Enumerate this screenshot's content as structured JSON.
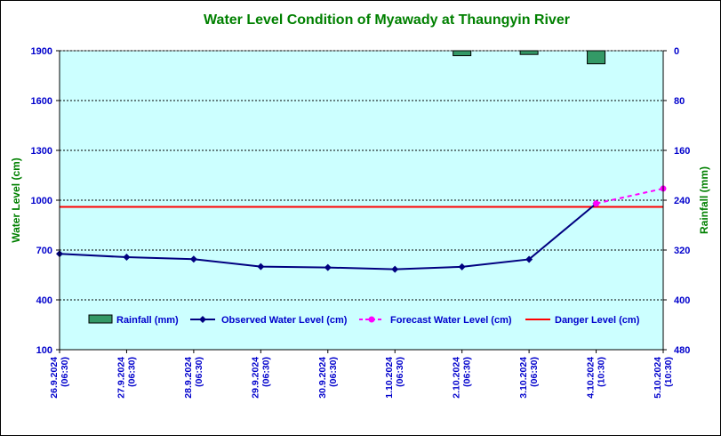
{
  "chart_data": {
    "type": "line",
    "title": "Water Level Condition of  Myawady at Thaungyin River",
    "ylabel": "Water Level (cm)",
    "y2label": "Rainfall (mm)",
    "ylim": [
      100,
      1900
    ],
    "yticks": [
      100,
      400,
      700,
      1000,
      1300,
      1600,
      1900
    ],
    "y2lim": [
      0,
      480
    ],
    "y2ticks": [
      0,
      80,
      160,
      240,
      320,
      400,
      480
    ],
    "y2_inverted": true,
    "grid": true,
    "legend_position": "bottom-inside",
    "categories": [
      {
        "date": "26.9.2024",
        "time": "(06:30)"
      },
      {
        "date": "27.9.2024",
        "time": "(06:30)"
      },
      {
        "date": "28.9.2024",
        "time": "(06:30)"
      },
      {
        "date": "29.9.2024",
        "time": "(06:30)"
      },
      {
        "date": "30.9.2024",
        "time": "(06:30)"
      },
      {
        "date": "1.10.2024",
        "time": "(06:30)"
      },
      {
        "date": "2.10.2024",
        "time": "(06:30)"
      },
      {
        "date": "3.10.2024",
        "time": "(06:30)"
      },
      {
        "date": "4.10.2024",
        "time": "(10:30)"
      },
      {
        "date": "5.10.2024",
        "time": "(10:30)"
      }
    ],
    "series": [
      {
        "name": "Rainfall (mm)",
        "kind": "bar",
        "axis": "right",
        "color": "#339966",
        "values": [
          null,
          null,
          null,
          null,
          null,
          null,
          8,
          6,
          21,
          null
        ]
      },
      {
        "name": "Observed Water Level (cm)",
        "kind": "line",
        "axis": "left",
        "color": "#000080",
        "values": [
          677,
          657,
          645,
          600,
          595,
          584,
          599,
          644,
          980,
          null
        ]
      },
      {
        "name": "Forecast Water Level (cm)",
        "kind": "dashed-line",
        "axis": "left",
        "color": "#ff00ff",
        "values": [
          null,
          null,
          null,
          null,
          null,
          null,
          null,
          null,
          980,
          1070
        ]
      },
      {
        "name": "Danger Level (cm)",
        "kind": "hline",
        "axis": "left",
        "color": "#ff0000",
        "value": 960
      }
    ],
    "colors": {
      "plot_bg": "#ccffff",
      "axis_text": "#0000cc",
      "label_text": "#008000"
    }
  }
}
